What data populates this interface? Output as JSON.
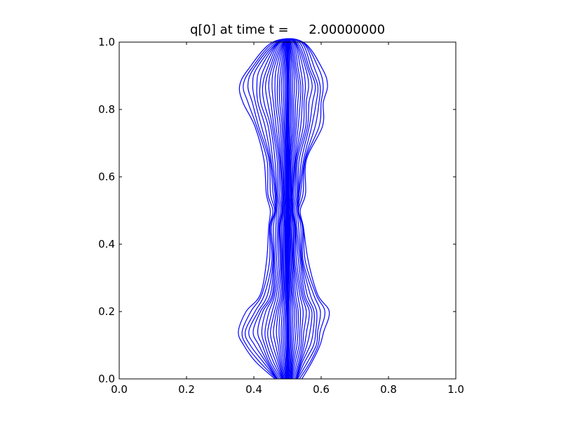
{
  "chart_data": {
    "type": "contour",
    "title": "q[0] at time t =     2.00000000",
    "xlabel": "",
    "ylabel": "",
    "xlim": [
      0.0,
      1.0
    ],
    "ylim": [
      0.0,
      1.0
    ],
    "x_ticks": [
      "0.0",
      "0.2",
      "0.4",
      "0.6",
      "0.8",
      "1.0"
    ],
    "y_ticks": [
      "0.0",
      "0.2",
      "0.4",
      "0.6",
      "0.8",
      "1.0"
    ],
    "grid": false,
    "legend": "none",
    "line_color": "#0000ff",
    "contour_count": 18,
    "center_x": 0.5,
    "profile_y": [
      0.0,
      0.05,
      0.1,
      0.14,
      0.2,
      0.25,
      0.35,
      0.45,
      0.5,
      0.55,
      0.65,
      0.75,
      0.82,
      0.87,
      0.92,
      1.0
    ],
    "left_extent": [
      0.46,
      0.41,
      0.37,
      0.35,
      0.38,
      0.42,
      0.44,
      0.44,
      0.45,
      0.44,
      0.43,
      0.4,
      0.37,
      0.36,
      0.38,
      0.46
    ],
    "right_extent": [
      0.54,
      0.57,
      0.6,
      0.61,
      0.62,
      0.59,
      0.56,
      0.55,
      0.54,
      0.55,
      0.56,
      0.6,
      0.61,
      0.62,
      0.6,
      0.55
    ]
  }
}
